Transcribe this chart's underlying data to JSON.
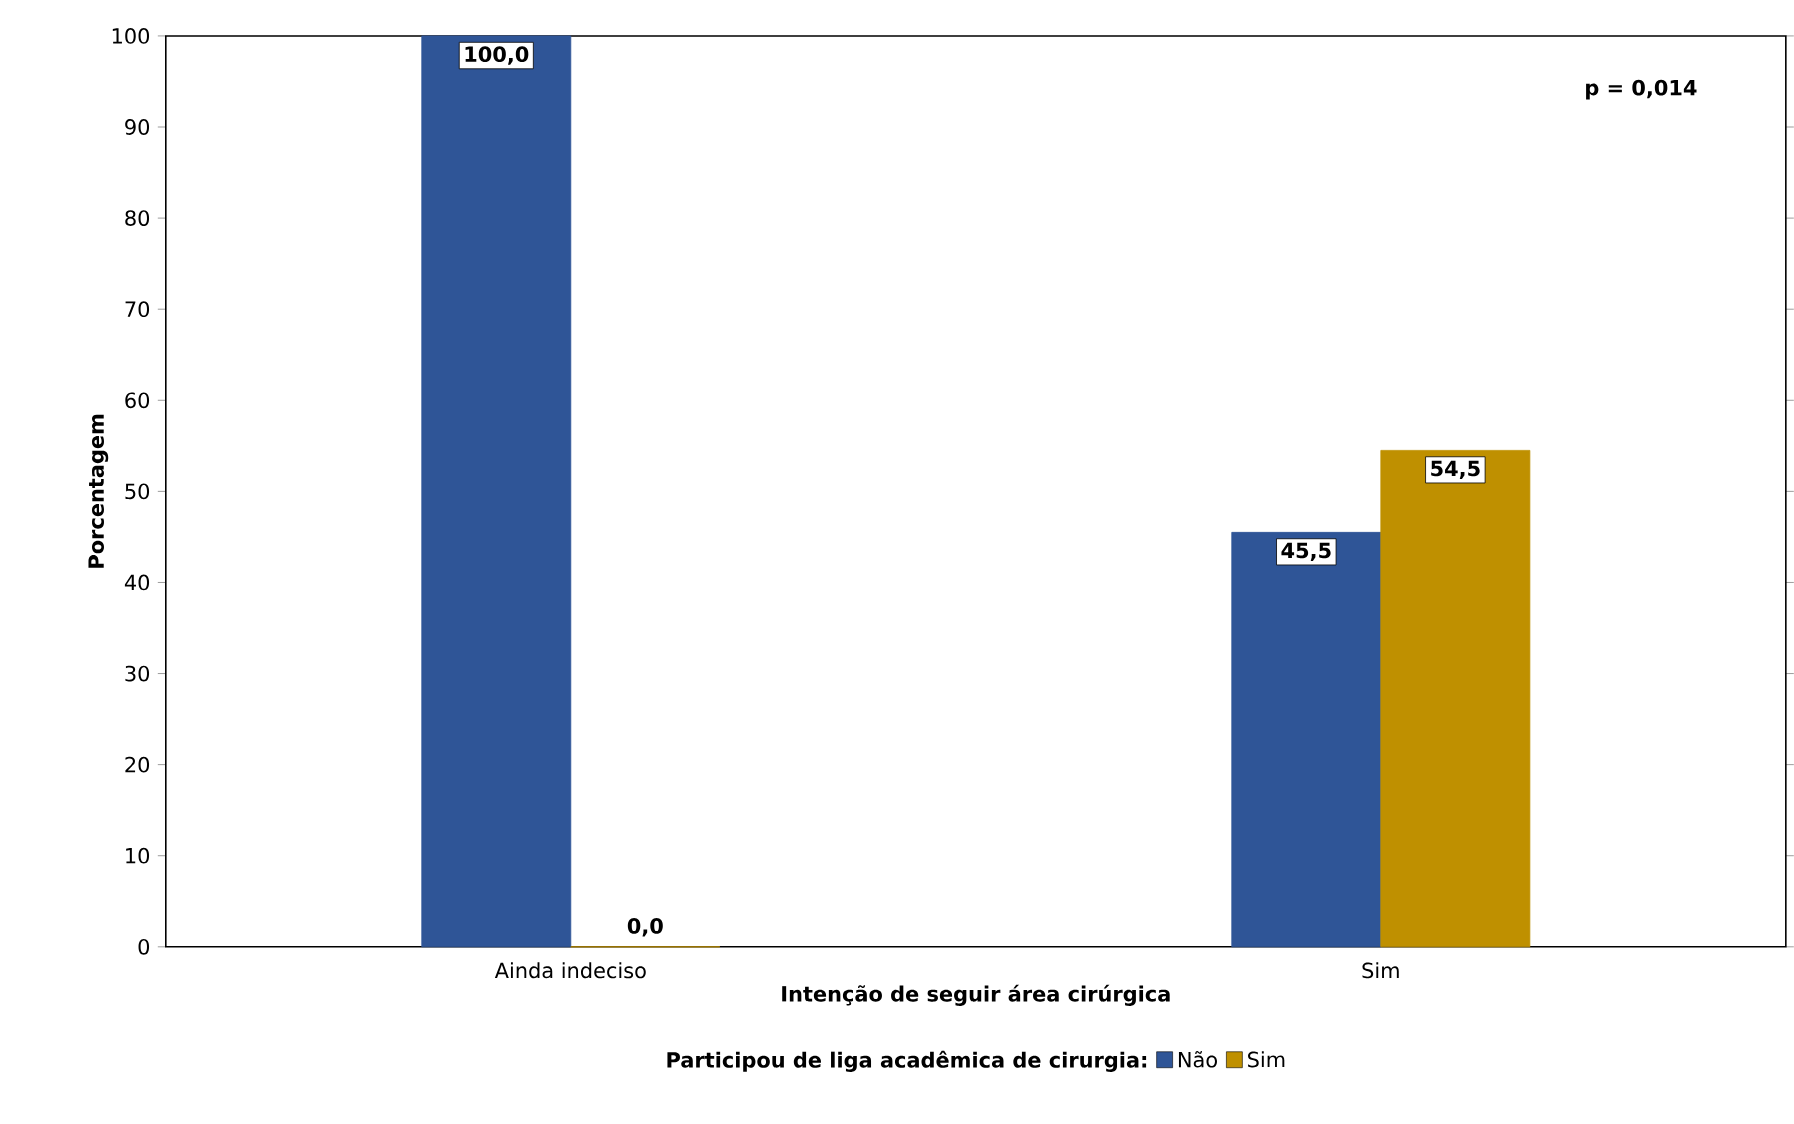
{
  "chart_data": {
    "type": "bar",
    "xlabel": "Intenção de seguir área cirúrgica",
    "ylabel": "Porcentagem",
    "categories": [
      "Ainda indeciso",
      "Sim"
    ],
    "series": [
      {
        "name": "Não",
        "color": "#2f5597",
        "values": [
          100.0,
          45.5
        ],
        "value_labels": [
          "100,0",
          "45,5"
        ]
      },
      {
        "name": "Sim",
        "color": "#bf9000",
        "values": [
          0.0,
          54.5
        ],
        "value_labels": [
          "0,0",
          "54,5"
        ]
      }
    ],
    "ylim": [
      0,
      100
    ],
    "yticks": [
      0,
      10,
      20,
      30,
      40,
      50,
      60,
      70,
      80,
      90,
      100
    ],
    "legend": "bottom",
    "legend_title": "Participou de liga acadêmica de cirurgia:",
    "annotations": [
      "p = 0,014"
    ]
  }
}
